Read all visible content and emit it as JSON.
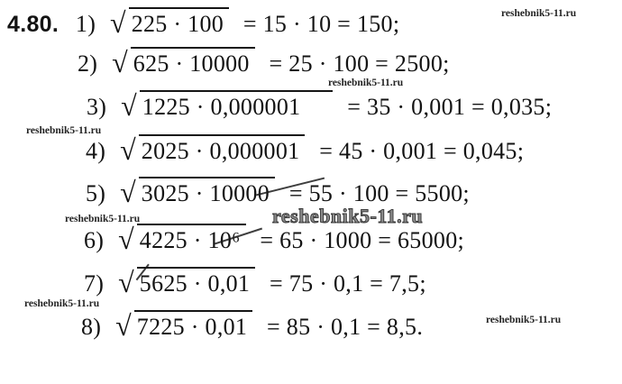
{
  "problem": {
    "number": "4.80."
  },
  "watermark": {
    "text": "reshebnik5-11.ru"
  },
  "lines": [
    {
      "num": "1)",
      "radicand": "225 · 100",
      "eq": "= 15 · 10 = 150;"
    },
    {
      "num": "2)",
      "radicand": "625 · 10000",
      "eq": "= 25 · 100 = 2500;"
    },
    {
      "num": "3)",
      "radicand": "1225 · 0,000001",
      "eq": "= 35 · 0,001 = 0,035;"
    },
    {
      "num": "4)",
      "radicand": "2025 · 0,000001",
      "eq": "= 45 · 0,001 = 0,045;"
    },
    {
      "num": "5)",
      "radicand": "3025 · 10000",
      "eq": "= 55 · 100 = 5500;"
    },
    {
      "num": "6)",
      "radicand": "4225 · 10⁶",
      "eq": "= 65 · 1000 = 65000;"
    },
    {
      "num": "7)",
      "radicand": "5625 · 0,01",
      "eq": "= 75 · 0,1 = 7,5;"
    },
    {
      "num": "8)",
      "radicand": "7225 · 0,01",
      "eq": "= 85 · 0,1 = 8,5."
    }
  ]
}
